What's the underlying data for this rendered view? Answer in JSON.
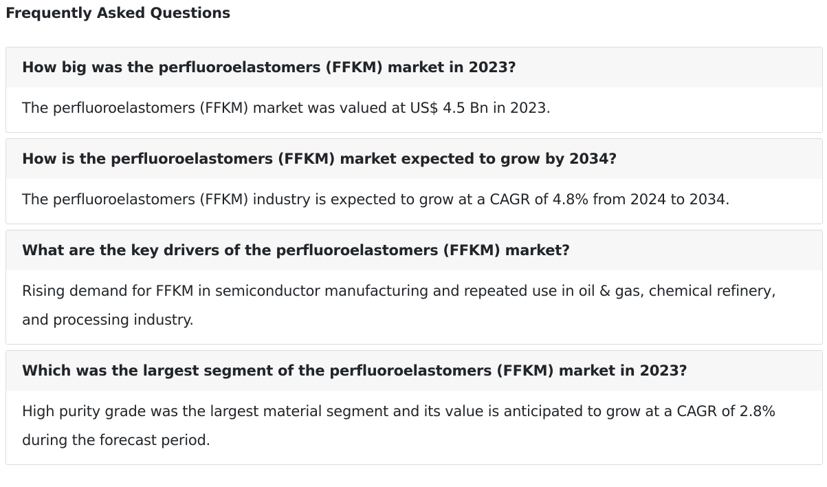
{
  "page": {
    "title": "Frequently Asked Questions"
  },
  "faq": {
    "items": [
      {
        "question": "How big was the perfluoroelastomers (FFKM) market in 2023?",
        "answer": "The perfluoroelastomers (FFKM) market was valued at US$ 4.5 Bn in 2023."
      },
      {
        "question": "How is the perfluoroelastomers (FFKM) market expected to grow by 2034?",
        "answer": "The perfluoroelastomers (FFKM) industry is expected to grow at a CAGR of 4.8% from 2024 to 2034."
      },
      {
        "question": "What are the key drivers of the perfluoroelastomers (FFKM) market?",
        "answer": "Rising demand for FFKM in semiconductor manufacturing and repeated use in oil & gas, chemical refinery, and processing industry."
      },
      {
        "question": "Which was the largest segment of the perfluoroelastomers (FFKM) market in 2023?",
        "answer": "High purity grade was the largest material segment and its value is anticipated to grow at a CAGR of 2.8% during the forecast period."
      }
    ]
  }
}
